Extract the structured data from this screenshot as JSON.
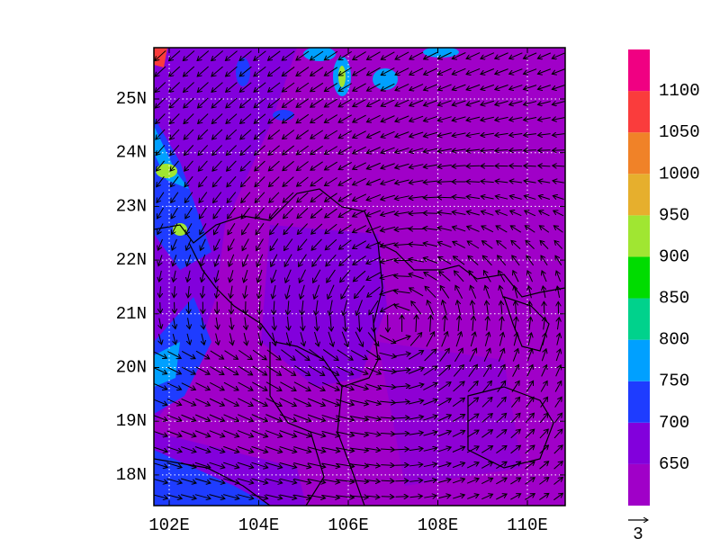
{
  "map": {
    "y_axis_labels": [
      "25N",
      "24N",
      "23N",
      "22N",
      "21N",
      "20N",
      "19N",
      "18N"
    ],
    "x_axis_labels": [
      "102E",
      "104E",
      "106E",
      "108E",
      "110E"
    ],
    "colorbar": {
      "labels": [
        "650",
        "700",
        "750",
        "800",
        "850",
        "900",
        "950",
        "1000",
        "1050",
        "1100"
      ],
      "colors": [
        "#a000c8",
        "#8200dc",
        "#1e3cff",
        "#00a0ff",
        "#00d28c",
        "#00dc00",
        "#a0e632",
        "#e6af2d",
        "#f08228",
        "#fa3c3c",
        "#f00082"
      ]
    },
    "reference_vector": {
      "label": "3"
    }
  }
}
